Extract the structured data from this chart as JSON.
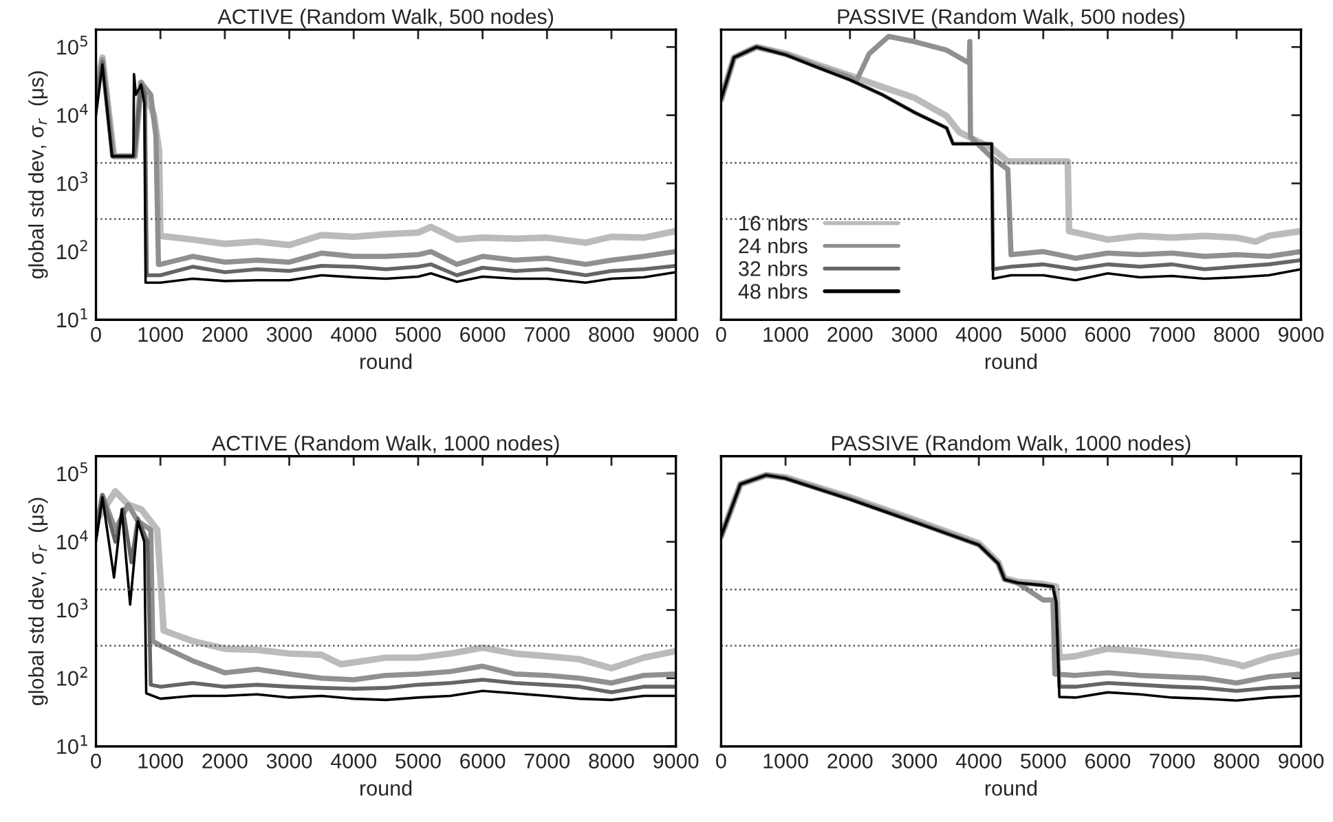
{
  "chart_data": [
    {
      "type": "line",
      "title": "ACTIVE (Random Walk, 500 nodes)",
      "xlabel": "round",
      "ylabel": "global std dev, σ$_{r}$  (μs)",
      "log": "y",
      "grid": false,
      "legend": false,
      "xlim": [
        0,
        9000
      ],
      "ylim": [
        10,
        180000
      ],
      "xticks": [
        0,
        1000,
        2000,
        3000,
        4000,
        5000,
        6000,
        7000,
        8000,
        9000
      ],
      "yticks": [
        {
          "value": 10,
          "label": "10$^{1}$"
        },
        {
          "value": 100,
          "label": "10$^{2}$"
        },
        {
          "value": 1000,
          "label": "10$^{3}$"
        },
        {
          "value": 10000,
          "label": "10$^{4}$"
        },
        {
          "value": 100000,
          "label": "10$^{5}$"
        }
      ],
      "ref_lines": [
        {
          "axis": "y",
          "value": 2000,
          "color": "#555555",
          "line_style": "dotted"
        },
        {
          "axis": "y",
          "value": 300,
          "color": "#555555",
          "line_style": "dotted"
        }
      ],
      "series": [
        {
          "color": "#bbbbbb",
          "x": [
            0,
            100,
            280,
            600,
            700,
            900,
            980,
            1000,
            1500,
            2000,
            2500,
            3000,
            3500,
            4000,
            4500,
            5000,
            5200,
            5600,
            6000,
            6500,
            7000,
            7600,
            8000,
            8500,
            9000
          ],
          "values": [
            25000,
            70000,
            2500,
            2500,
            30000,
            10000,
            3000,
            170,
            150,
            130,
            140,
            125,
            175,
            165,
            180,
            190,
            230,
            150,
            160,
            155,
            160,
            135,
            165,
            160,
            200
          ]
        },
        {
          "color": "#909090",
          "x": [
            0,
            100,
            270,
            600,
            700,
            850,
            930,
            970,
            1000,
            1500,
            2000,
            2500,
            3000,
            3500,
            4000,
            4500,
            5000,
            5200,
            5600,
            6000,
            6500,
            7000,
            7600,
            8000,
            8500,
            9000
          ],
          "values": [
            20000,
            65000,
            2500,
            2500,
            30000,
            20000,
            5000,
            65,
            65,
            85,
            70,
            75,
            70,
            95,
            85,
            85,
            90,
            100,
            65,
            85,
            75,
            80,
            65,
            75,
            85,
            100
          ]
        },
        {
          "color": "#666666",
          "x": [
            0,
            100,
            250,
            590,
            700,
            760,
            790,
            1000,
            1500,
            2000,
            2500,
            3000,
            3500,
            4000,
            4500,
            5000,
            5200,
            5600,
            6000,
            6500,
            7000,
            7600,
            8000,
            8500,
            9000
          ],
          "values": [
            15000,
            60000,
            2500,
            2500,
            28000,
            20000,
            45,
            45,
            60,
            50,
            55,
            52,
            62,
            60,
            55,
            60,
            65,
            45,
            58,
            52,
            55,
            45,
            52,
            55,
            62
          ]
        },
        {
          "color": "#000000",
          "x": [
            0,
            100,
            250,
            580,
            590,
            620,
            700,
            750,
            770,
            1000,
            1500,
            2000,
            2500,
            3000,
            3500,
            4000,
            4500,
            5000,
            5200,
            5600,
            6000,
            6500,
            7000,
            7600,
            8000,
            8500,
            9000
          ],
          "values": [
            10000,
            55000,
            2500,
            2500,
            40000,
            20000,
            28000,
            15000,
            35,
            35,
            40,
            37,
            38,
            38,
            45,
            42,
            40,
            43,
            48,
            36,
            43,
            40,
            40,
            35,
            40,
            42,
            50
          ]
        }
      ]
    },
    {
      "type": "line",
      "title": "PASSIVE (Random Walk, 500 nodes)",
      "xlabel": "round",
      "log": "y",
      "grid": false,
      "legend": "bottom left",
      "tick_labels": "x",
      "xlim": [
        0,
        9000
      ],
      "ylim": [
        10,
        180000
      ],
      "xticks": [
        0,
        1000,
        2000,
        3000,
        4000,
        5000,
        6000,
        7000,
        8000,
        9000
      ],
      "yticks": [
        {
          "value": 10,
          "label": null
        },
        {
          "value": 100,
          "label": null
        },
        {
          "value": 1000,
          "label": null
        },
        {
          "value": 10000,
          "label": null
        },
        {
          "value": 100000,
          "label": null
        }
      ],
      "ref_lines": [
        {
          "axis": "y",
          "value": 2000,
          "color": "#555555",
          "line_style": "dotted"
        },
        {
          "axis": "y",
          "value": 300,
          "color": "#555555",
          "line_style": "dotted"
        }
      ],
      "series": [
        {
          "name": "16 nbrs",
          "color": "#bbbbbb",
          "x": [
            0,
            200,
            550,
            1000,
            1500,
            2000,
            2500,
            3000,
            3500,
            3700,
            4200,
            4450,
            5380,
            5400,
            6000,
            6500,
            7000,
            7500,
            8000,
            8300,
            8500,
            9000
          ],
          "values": [
            17000,
            70000,
            100000,
            80000,
            55000,
            38000,
            26000,
            18000,
            9700,
            5600,
            3300,
            2100,
            2100,
            200,
            150,
            170,
            160,
            170,
            160,
            140,
            170,
            200
          ]
        },
        {
          "name": "24 nbrs",
          "color": "#909090",
          "x": [
            0,
            200,
            550,
            1000,
            1500,
            2000,
            2100,
            2300,
            2600,
            3000,
            3500,
            3850,
            3860,
            3870,
            4200,
            4450,
            4500,
            5000,
            5500,
            6000,
            6500,
            7000,
            7500,
            8000,
            8500,
            9000
          ],
          "values": [
            17000,
            70000,
            100000,
            78000,
            52000,
            36000,
            32000,
            80000,
            143000,
            120000,
            90000,
            58000,
            120000,
            4800,
            2400,
            1600,
            90,
            100,
            80,
            95,
            90,
            95,
            85,
            90,
            85,
            100
          ]
        },
        {
          "name": "32 nbrs",
          "color": "#666666",
          "x": [
            0,
            200,
            550,
            1000,
            1500,
            2000,
            2500,
            3000,
            3500,
            3600,
            4200,
            4220,
            4500,
            5000,
            5500,
            6000,
            6500,
            7000,
            7500,
            8000,
            8500,
            9000
          ],
          "values": [
            17000,
            70000,
            100000,
            77000,
            50000,
            33000,
            20000,
            11000,
            6500,
            3800,
            3800,
            55,
            60,
            65,
            55,
            65,
            60,
            65,
            55,
            60,
            65,
            75
          ]
        },
        {
          "name": "48 nbrs",
          "color": "#000000",
          "x": [
            0,
            200,
            550,
            1000,
            1500,
            2000,
            2500,
            3000,
            3500,
            3600,
            4200,
            4220,
            4500,
            5000,
            5500,
            6000,
            6500,
            7000,
            7500,
            8000,
            8500,
            9000
          ],
          "values": [
            17000,
            70000,
            100000,
            77000,
            50000,
            33000,
            20000,
            11000,
            6500,
            3800,
            3800,
            40,
            45,
            45,
            38,
            48,
            42,
            44,
            40,
            42,
            45,
            55
          ]
        }
      ]
    },
    {
      "type": "line",
      "title": "ACTIVE (Random Walk, 1000 nodes)",
      "xlabel": "round",
      "ylabel": "global std dev, σ$_{r}$  (μs)",
      "log": "y",
      "grid": false,
      "legend": false,
      "xlim": [
        0,
        9000
      ],
      "ylim": [
        10,
        180000
      ],
      "xticks": [
        0,
        1000,
        2000,
        3000,
        4000,
        5000,
        6000,
        7000,
        8000,
        9000
      ],
      "yticks": [
        {
          "value": 10,
          "label": "10$^{1}$"
        },
        {
          "value": 100,
          "label": "10$^{2}$"
        },
        {
          "value": 1000,
          "label": "10$^{3}$"
        },
        {
          "value": 10000,
          "label": "10$^{4}$"
        },
        {
          "value": 100000,
          "label": "10$^{5}$"
        }
      ],
      "ref_lines": [
        {
          "axis": "y",
          "value": 2000,
          "color": "#555555",
          "line_style": "dotted"
        },
        {
          "axis": "y",
          "value": 300,
          "color": "#555555",
          "line_style": "dotted"
        }
      ],
      "series": [
        {
          "color": "#bbbbbb",
          "x": [
            0,
            300,
            500,
            700,
            950,
            1000,
            1050,
            1500,
            2000,
            2500,
            3000,
            3500,
            3800,
            4500,
            5000,
            5500,
            6000,
            6500,
            7000,
            7500,
            8000,
            8500,
            9000
          ],
          "values": [
            20000,
            55000,
            35000,
            30000,
            15000,
            3000,
            500,
            350,
            270,
            260,
            230,
            220,
            160,
            200,
            200,
            230,
            280,
            230,
            210,
            190,
            140,
            200,
            250
          ]
        },
        {
          "color": "#909090",
          "x": [
            0,
            100,
            300,
            500,
            650,
            850,
            880,
            1000,
            1500,
            2000,
            2500,
            3000,
            3500,
            4000,
            4500,
            5000,
            5500,
            6000,
            6500,
            7000,
            7500,
            8000,
            8500,
            9000
          ],
          "values": [
            15000,
            48000,
            15000,
            35000,
            20000,
            15000,
            350,
            300,
            180,
            120,
            135,
            115,
            100,
            95,
            110,
            115,
            125,
            150,
            115,
            110,
            100,
            85,
            110,
            115
          ]
        },
        {
          "color": "#666666",
          "x": [
            0,
            100,
            300,
            420,
            550,
            650,
            800,
            850,
            1000,
            1500,
            2000,
            2500,
            3000,
            3500,
            4000,
            4500,
            5000,
            5500,
            6000,
            6500,
            7000,
            7500,
            8000,
            8500,
            9000
          ],
          "values": [
            12000,
            48000,
            10000,
            30000,
            5000,
            22000,
            10000,
            80,
            75,
            85,
            75,
            80,
            75,
            72,
            70,
            72,
            80,
            85,
            95,
            85,
            80,
            75,
            62,
            75,
            75
          ]
        },
        {
          "color": "#000000",
          "x": [
            0,
            100,
            280,
            400,
            530,
            650,
            750,
            780,
            1000,
            1500,
            2000,
            2500,
            3000,
            3500,
            4000,
            4500,
            5000,
            5500,
            6000,
            6500,
            7000,
            7500,
            8000,
            8500,
            9000
          ],
          "values": [
            10000,
            45000,
            3000,
            30000,
            1200,
            20000,
            10000,
            60,
            50,
            55,
            55,
            58,
            52,
            55,
            50,
            48,
            52,
            55,
            65,
            60,
            55,
            50,
            48,
            55,
            55
          ]
        }
      ]
    },
    {
      "type": "line",
      "title": "PASSIVE (Random Walk, 1000 nodes)",
      "xlabel": "round",
      "log": "y",
      "grid": false,
      "legend": false,
      "tick_labels": "x",
      "xlim": [
        0,
        9000
      ],
      "ylim": [
        10,
        180000
      ],
      "xticks": [
        0,
        1000,
        2000,
        3000,
        4000,
        5000,
        6000,
        7000,
        8000,
        9000
      ],
      "yticks": [
        {
          "value": 10,
          "label": null
        },
        {
          "value": 100,
          "label": null
        },
        {
          "value": 1000,
          "label": null
        },
        {
          "value": 10000,
          "label": null
        },
        {
          "value": 100000,
          "label": null
        }
      ],
      "ref_lines": [
        {
          "axis": "y",
          "value": 2000,
          "color": "#555555",
          "line_style": "dotted"
        },
        {
          "axis": "y",
          "value": 300,
          "color": "#555555",
          "line_style": "dotted"
        }
      ],
      "series": [
        {
          "color": "#bbbbbb",
          "x": [
            0,
            300,
            700,
            1000,
            2000,
            3000,
            4000,
            4300,
            4400,
            4600,
            5000,
            5200,
            5250,
            5500,
            6000,
            6500,
            7000,
            7500,
            8000,
            8100,
            8500,
            9000
          ],
          "values": [
            12000,
            70000,
            95000,
            88000,
            45000,
            21000,
            9500,
            5000,
            2900,
            2600,
            2400,
            2200,
            200,
            210,
            270,
            250,
            220,
            200,
            160,
            150,
            200,
            250
          ]
        },
        {
          "color": "#909090",
          "x": [
            0,
            300,
            700,
            1000,
            2000,
            3000,
            4000,
            4300,
            4400,
            4600,
            5000,
            5150,
            5180,
            5500,
            6000,
            6500,
            7000,
            7500,
            8000,
            8500,
            9000
          ],
          "values": [
            12000,
            70000,
            95000,
            86000,
            43000,
            20000,
            9000,
            4800,
            2800,
            2500,
            1400,
            1400,
            115,
            110,
            120,
            110,
            105,
            100,
            85,
            105,
            115
          ]
        },
        {
          "color": "#666666",
          "x": [
            0,
            300,
            700,
            1000,
            2000,
            3000,
            4000,
            4300,
            4400,
            4600,
            5000,
            5150,
            5200,
            5250,
            5500,
            6000,
            6500,
            7000,
            7500,
            8000,
            8500,
            9000
          ],
          "values": [
            12000,
            70000,
            95000,
            85000,
            42000,
            19500,
            9000,
            4800,
            2800,
            2500,
            2300,
            2200,
            1300,
            75,
            75,
            85,
            80,
            75,
            72,
            65,
            72,
            75
          ]
        },
        {
          "color": "#000000",
          "x": [
            0,
            300,
            700,
            1000,
            2000,
            3000,
            4000,
            4300,
            4400,
            4600,
            5000,
            5150,
            5200,
            5250,
            5500,
            6000,
            6500,
            7000,
            7500,
            8000,
            8500,
            9000
          ],
          "values": [
            12000,
            70000,
            95000,
            85000,
            42000,
            19500,
            9000,
            4800,
            2800,
            2500,
            2300,
            2200,
            1300,
            53,
            52,
            62,
            58,
            52,
            50,
            47,
            52,
            55
          ]
        }
      ]
    }
  ]
}
